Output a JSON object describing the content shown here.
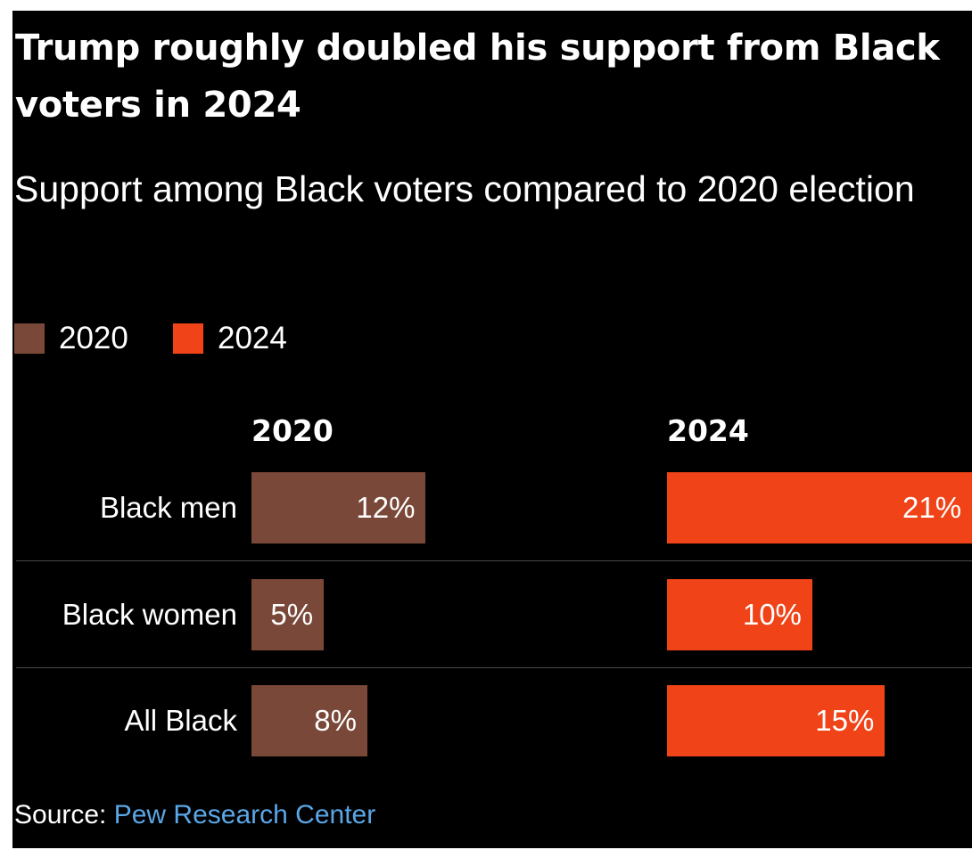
{
  "chart_data": {
    "type": "bar",
    "title": "Trump roughly doubled his support from Black voters in 2024",
    "subtitle": "Support among Black voters compared to 2020 election",
    "categories": [
      "Black men",
      "Black women",
      "All Black"
    ],
    "series": [
      {
        "name": "2020",
        "color": "#7a4838",
        "values": [
          12,
          5,
          8
        ],
        "labels": [
          "12%",
          "5%",
          "8%"
        ]
      },
      {
        "name": "2024",
        "color": "#f04317",
        "values": [
          21,
          10,
          15
        ],
        "labels": [
          "21%",
          "10%",
          "15%"
        ]
      }
    ],
    "value_max": 21,
    "unit": "%",
    "legend_position": "top-left",
    "grid": false
  },
  "legend": [
    {
      "label": "2020",
      "color": "#7a4838"
    },
    {
      "label": "2024",
      "color": "#f04317"
    }
  ],
  "columns": [
    "2020",
    "2024"
  ],
  "source": {
    "prefix": "Source:",
    "name": "Pew Research Center"
  },
  "colors": {
    "background": "#000000",
    "text": "#ffffff",
    "link": "#5aa6e6",
    "divider": "#4a4a4a"
  }
}
